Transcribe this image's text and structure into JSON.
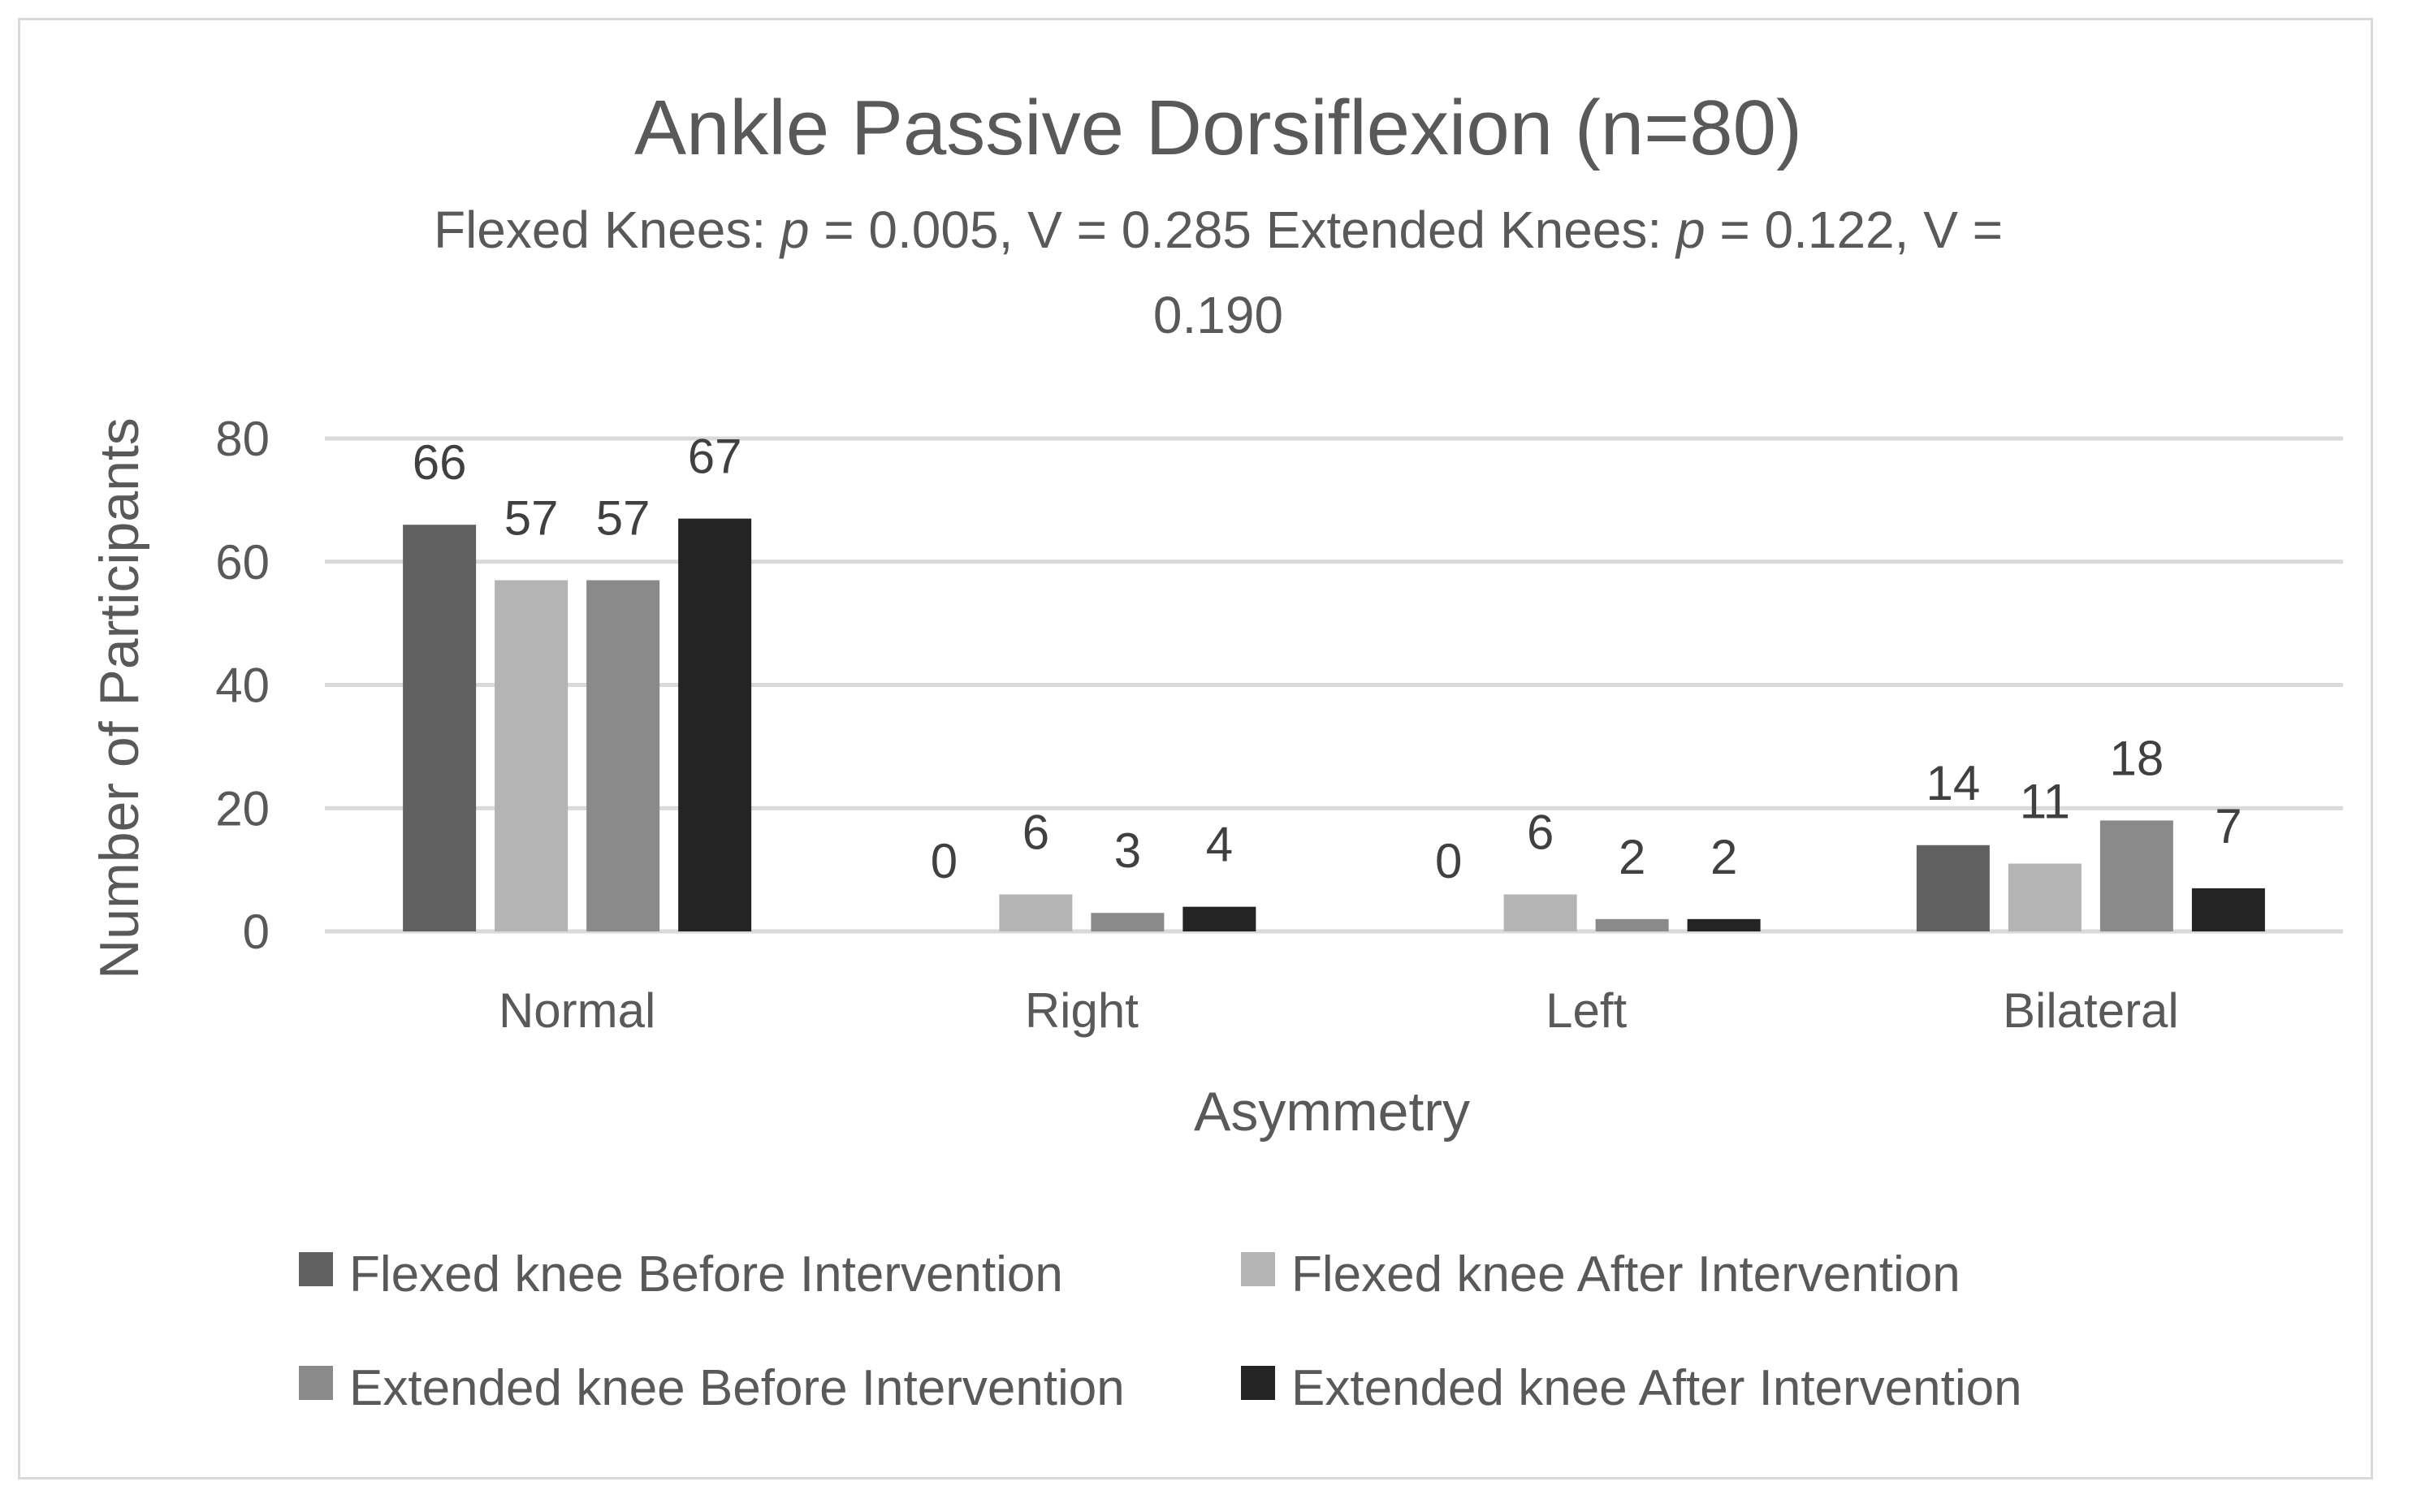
{
  "chart_data": {
    "type": "bar",
    "title": "Ankle Passive Dorsiflexion (n=80)",
    "subtitle": {
      "line1": {
        "prefix": "Flexed Knees: ",
        "p1": "p",
        "mid": " = 0.005, V = 0.285 Extended Knees: ",
        "p2": "p",
        "suffix": " = 0.122, V ="
      },
      "line2": "0.190"
    },
    "xlabel": "Asymmetry",
    "ylabel": "Number of Participants",
    "ylim": [
      0,
      80
    ],
    "yticks": [
      0,
      20,
      40,
      60,
      80
    ],
    "grid": true,
    "legend_position": "bottom",
    "categories": [
      "Normal",
      "Right",
      "Left",
      "Bilateral"
    ],
    "series": [
      {
        "name": "Flexed knee  Before Intervention",
        "color": "#606060",
        "values": [
          66,
          0,
          0,
          14
        ]
      },
      {
        "name": "Flexed knee  After Intervention",
        "color": "#b4b4b4",
        "values": [
          57,
          6,
          6,
          11
        ]
      },
      {
        "name": "Extended knee Before Intervention",
        "color": "#8a8a8a",
        "values": [
          57,
          3,
          2,
          18
        ]
      },
      {
        "name": "Extended knee After Intervention",
        "color": "#242424",
        "values": [
          67,
          4,
          2,
          7
        ]
      }
    ]
  },
  "colors": {
    "text": "#595959",
    "data_label": "#404040",
    "grid": "#d9d9d9",
    "border": "#d9d9d9"
  }
}
